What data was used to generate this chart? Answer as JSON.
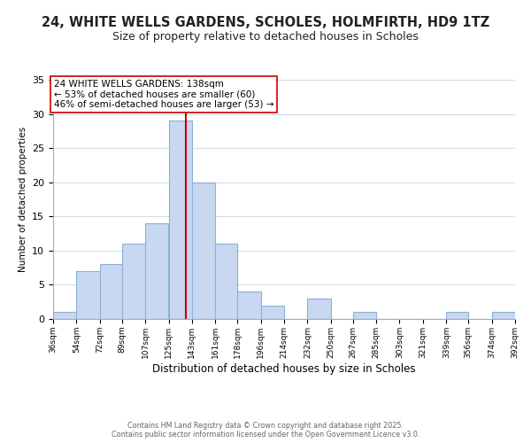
{
  "title": "24, WHITE WELLS GARDENS, SCHOLES, HOLMFIRTH, HD9 1TZ",
  "subtitle": "Size of property relative to detached houses in Scholes",
  "bar_color": "#c8d8f0",
  "bar_edge_color": "#8ab0d8",
  "bin_edges": [
    36,
    54,
    72,
    89,
    107,
    125,
    143,
    161,
    178,
    196,
    214,
    232,
    250,
    267,
    285,
    303,
    321,
    339,
    356,
    374,
    392
  ],
  "counts": [
    1,
    7,
    8,
    11,
    14,
    29,
    20,
    11,
    4,
    2,
    0,
    3,
    0,
    1,
    0,
    0,
    0,
    1,
    0,
    1
  ],
  "tick_labels": [
    "36sqm",
    "54sqm",
    "72sqm",
    "89sqm",
    "107sqm",
    "125sqm",
    "143sqm",
    "161sqm",
    "178sqm",
    "196sqm",
    "214sqm",
    "232sqm",
    "250sqm",
    "267sqm",
    "285sqm",
    "303sqm",
    "321sqm",
    "339sqm",
    "356sqm",
    "374sqm",
    "392sqm"
  ],
  "xlabel": "Distribution of detached houses by size in Scholes",
  "ylabel": "Number of detached properties",
  "ylim": [
    0,
    35
  ],
  "yticks": [
    0,
    5,
    10,
    15,
    20,
    25,
    30,
    35
  ],
  "vline_x": 138,
  "vline_color": "#cc0000",
  "annotation_title": "24 WHITE WELLS GARDENS: 138sqm",
  "annotation_line1": "← 53% of detached houses are smaller (60)",
  "annotation_line2": "46% of semi-detached houses are larger (53) →",
  "bg_color": "#ffffff",
  "grid_color": "#d0dce8",
  "footer_line1": "Contains HM Land Registry data © Crown copyright and database right 2025.",
  "footer_line2": "Contains public sector information licensed under the Open Government Licence v3.0.",
  "title_fontsize": 10.5,
  "subtitle_fontsize": 9,
  "xlabel_fontsize": 8.5,
  "ylabel_fontsize": 7.5,
  "tick_fontsize": 6.5,
  "ytick_fontsize": 8,
  "footer_fontsize": 5.8,
  "ann_fontsize": 7.5
}
